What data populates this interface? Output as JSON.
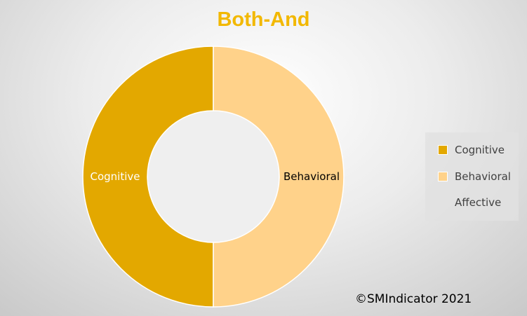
{
  "chart_data": {
    "type": "pie",
    "donut": true,
    "title": "Both-And",
    "categories": [
      "Cognitive",
      "Behavioral",
      "Affective"
    ],
    "values": [
      50,
      50,
      0
    ],
    "colors": [
      "#e3a800",
      "#ffd28a",
      "#a5a5a5"
    ],
    "legend": {
      "position": "right"
    },
    "data_labels": [
      "Cognitive",
      "Behavioral",
      ""
    ],
    "label_colors": [
      "#ffffff",
      "#000000",
      "#000000"
    ]
  },
  "footer": {
    "copyright": "©SMIndicator 2021"
  }
}
